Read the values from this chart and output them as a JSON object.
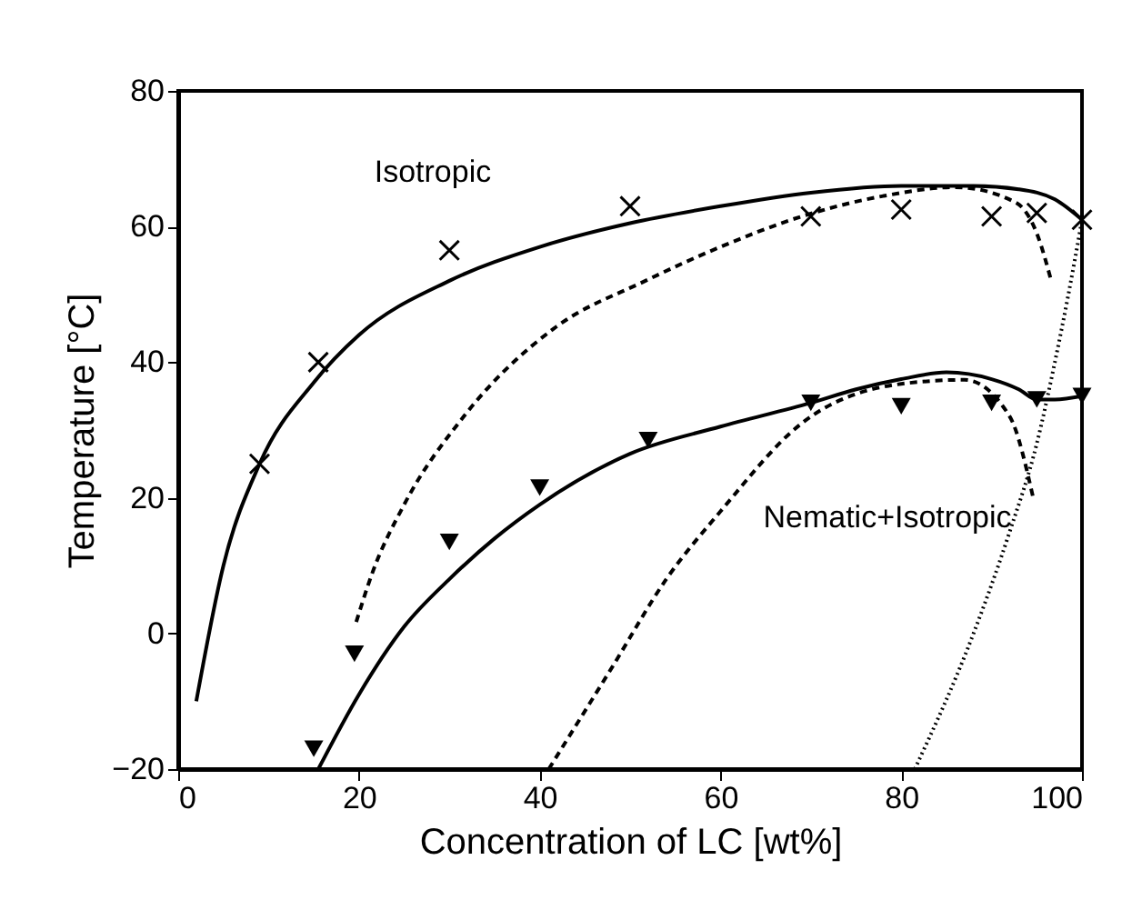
{
  "chart_data": {
    "type": "scatter",
    "xlabel": "Concentration of LC [wt%]",
    "ylabel": "Temperature [°C]",
    "xlim": [
      0,
      100
    ],
    "xticks": [
      0,
      20,
      40,
      60,
      80,
      100
    ],
    "ylim": [
      -20,
      80
    ],
    "yticks": [
      -20,
      0,
      20,
      40,
      60,
      80
    ],
    "grid": false,
    "series": [
      {
        "marker": "cross",
        "color": "#000000",
        "x": [
          9,
          15.5,
          30,
          50,
          70,
          80,
          90,
          95,
          100
        ],
        "values": [
          25,
          40,
          56.5,
          63,
          61.5,
          62.5,
          61.5,
          62,
          61
        ]
      },
      {
        "marker": "triangle",
        "color": "#000000",
        "x": [
          15,
          19.5,
          30,
          40,
          52,
          70,
          80,
          90,
          95,
          100
        ],
        "values": [
          -17,
          -3,
          13.5,
          21.5,
          28.5,
          34,
          33.5,
          34,
          34.5,
          35
        ]
      },
      {
        "type": "line",
        "line_style": "solid",
        "color": "#000000",
        "x": [
          2,
          5,
          9,
          15,
          20,
          30,
          40,
          50,
          60,
          70,
          80,
          88,
          93,
          97,
          100
        ],
        "values": [
          -10,
          10,
          25,
          37,
          44,
          52,
          57,
          60.5,
          63,
          65,
          66,
          66,
          65.5,
          64,
          61
        ]
      },
      {
        "type": "line",
        "line_style": "solid",
        "color": "#000000",
        "x": [
          15.5,
          20,
          25,
          30,
          35,
          40,
          50,
          60,
          70,
          75,
          80,
          85,
          90,
          93,
          95,
          97,
          100
        ],
        "values": [
          -20,
          -9,
          1,
          8,
          14,
          19,
          26.5,
          30.5,
          34,
          36,
          37.5,
          38.5,
          37.5,
          36,
          34.5,
          34.5,
          35
        ]
      },
      {
        "type": "line",
        "line_style": "dashed",
        "color": "#000000",
        "x": [
          19.7,
          21.5,
          25,
          31.6,
          41.6,
          51.7,
          60,
          69,
          78,
          86,
          92.6,
          95,
          96.6
        ],
        "values": [
          1.7,
          9,
          19,
          32,
          45,
          52,
          57,
          61.5,
          64.5,
          65.8,
          63.6,
          59,
          52
        ]
      },
      {
        "type": "line",
        "line_style": "dashed",
        "color": "#000000",
        "x": [
          41,
          48,
          54,
          60,
          69,
          80,
          87,
          92,
          94.6
        ],
        "values": [
          -20,
          -5,
          8,
          18,
          31,
          36.8,
          37.4,
          32,
          20
        ]
      },
      {
        "type": "line",
        "line_style": "dotted",
        "color": "#000000",
        "x": [
          81.5,
          88,
          92,
          95,
          97,
          98.5,
          100
        ],
        "values": [
          -20,
          0,
          15,
          28,
          40,
          50,
          61
        ]
      }
    ],
    "annotations": [
      "Isotropic",
      "Nematic+Isotropic"
    ]
  }
}
